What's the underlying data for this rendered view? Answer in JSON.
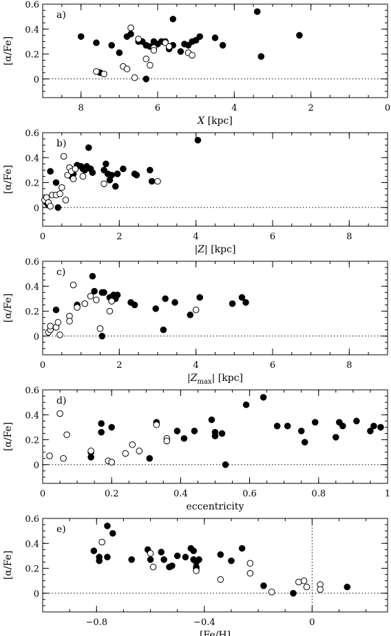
{
  "chart_data": [
    {
      "type": "scatter",
      "panel_label": "a)",
      "xlabel_italic": "X",
      "xlabel_unit": "[kpc]",
      "ylabel": "[α/Fe]",
      "xlim": [
        9,
        0
      ],
      "ylim": [
        -0.15,
        0.6
      ],
      "xticks": [
        8,
        6,
        4,
        2,
        0
      ],
      "xtick_labels": [
        "8",
        "6",
        "4",
        "2",
        "0"
      ],
      "yticks": [
        0,
        0.2,
        0.4,
        0.6
      ],
      "ytick_labels": [
        "0",
        "0.2",
        "0.4",
        "0.6"
      ],
      "hline": 0,
      "series": [
        {
          "marker": "filled",
          "x": [
            8.0,
            7.5,
            7.6,
            7.2,
            7.0,
            6.8,
            6.7,
            6.5,
            6.4,
            6.3,
            6.2,
            6.1,
            6.0,
            5.9,
            5.8,
            5.7,
            5.7,
            5.6,
            5.6,
            5.4,
            5.3,
            5.2,
            5.1,
            5.0,
            4.9,
            4.5,
            4.3,
            3.4,
            3.3,
            2.3,
            6.3
          ],
          "y": [
            0.34,
            0.05,
            0.29,
            0.27,
            0.21,
            0.34,
            0.36,
            0.3,
            0.3,
            0.27,
            0.26,
            0.3,
            0.28,
            0.3,
            0.3,
            0.26,
            0.24,
            0.27,
            0.48,
            0.22,
            0.28,
            0.27,
            0.3,
            0.31,
            0.34,
            0.33,
            0.27,
            0.54,
            0.18,
            0.35,
            0.0
          ]
        },
        {
          "marker": "open",
          "x": [
            7.6,
            7.4,
            6.9,
            6.8,
            6.7,
            6.6,
            6.5,
            6.3,
            6.2,
            6.1,
            6.1,
            5.8,
            5.7,
            5.2,
            5.1
          ],
          "y": [
            0.06,
            0.04,
            0.1,
            0.08,
            0.41,
            0.01,
            0.32,
            0.16,
            0.11,
            0.25,
            0.23,
            0.29,
            0.26,
            0.21,
            0.19
          ]
        }
      ]
    },
    {
      "type": "scatter",
      "panel_label": "b)",
      "xlabel_italic": "|Z|",
      "xlabel_unit": "[kpc]",
      "ylabel": "[α/Fe]",
      "xlim": [
        0,
        9
      ],
      "ylim": [
        -0.15,
        0.6
      ],
      "xticks": [
        0,
        2,
        4,
        6,
        8
      ],
      "xtick_labels": [
        "0",
        "2",
        "4",
        "6",
        "8"
      ],
      "yticks": [
        0,
        0.2,
        0.4,
        0.6
      ],
      "ytick_labels": [
        "0",
        "0.2",
        "0.4",
        "0.6"
      ],
      "hline": 0,
      "series": [
        {
          "marker": "filled",
          "x": [
            0.1,
            0.15,
            0.2,
            0.35,
            0.4,
            0.75,
            0.8,
            0.9,
            1.0,
            1.05,
            1.1,
            1.15,
            1.2,
            1.25,
            1.3,
            1.6,
            1.65,
            1.7,
            1.75,
            1.8,
            1.9,
            1.95,
            2.1,
            2.4,
            2.45,
            2.8,
            2.85,
            4.05
          ],
          "y": [
            0.04,
            0.02,
            0.29,
            0.2,
            0.0,
            0.25,
            0.27,
            0.34,
            0.33,
            0.31,
            0.3,
            0.33,
            0.48,
            0.31,
            0.28,
            0.3,
            0.35,
            0.27,
            0.22,
            0.26,
            0.17,
            0.27,
            0.31,
            0.27,
            0.26,
            0.3,
            0.21,
            0.54
          ]
        },
        {
          "marker": "open",
          "x": [
            0.05,
            0.1,
            0.15,
            0.2,
            0.25,
            0.35,
            0.45,
            0.5,
            0.55,
            0.6,
            0.65,
            0.7,
            0.75,
            0.8,
            0.85,
            1.05,
            1.6,
            3.0
          ],
          "y": [
            0.06,
            0.08,
            0.04,
            0.01,
            0.1,
            0.1,
            0.11,
            0.16,
            0.41,
            0.06,
            0.26,
            0.32,
            0.29,
            0.23,
            0.31,
            0.25,
            0.19,
            0.21
          ]
        }
      ]
    },
    {
      "type": "scatter",
      "panel_label": "c)",
      "xlabel_italic": "|Z",
      "xlabel_sub": "max",
      "xlabel_italic2": "|",
      "xlabel_unit": "[kpc]",
      "ylabel": "[α/Fe]",
      "xlim": [
        0,
        9
      ],
      "ylim": [
        -0.15,
        0.6
      ],
      "xticks": [
        0,
        2,
        4,
        6,
        8
      ],
      "xtick_labels": [
        "0",
        "2",
        "4",
        "6",
        "8"
      ],
      "yticks": [
        0,
        0.2,
        0.4,
        0.6
      ],
      "ytick_labels": [
        "0",
        "0.2",
        "0.4",
        "0.6"
      ],
      "hline": 0,
      "series": [
        {
          "marker": "filled",
          "x": [
            0.35,
            0.9,
            1.3,
            1.35,
            1.55,
            1.6,
            1.75,
            1.8,
            1.85,
            1.9,
            1.95,
            2.3,
            2.4,
            2.95,
            3.15,
            3.2,
            3.45,
            3.85,
            4.1,
            4.95,
            5.2,
            5.3,
            1.55
          ],
          "y": [
            0.21,
            0.25,
            0.48,
            0.36,
            0.35,
            0.35,
            0.31,
            0.28,
            0.33,
            0.3,
            0.33,
            0.27,
            0.25,
            0.22,
            0.05,
            0.3,
            0.27,
            0.17,
            0.31,
            0.26,
            0.31,
            0.27,
            0.0
          ]
        },
        {
          "marker": "open",
          "x": [
            0.15,
            0.2,
            0.2,
            0.35,
            0.4,
            0.45,
            0.7,
            0.7,
            0.8,
            0.9,
            1.1,
            1.25,
            1.4,
            1.5,
            1.75,
            1.8,
            4.0
          ],
          "y": [
            0.03,
            0.05,
            0.08,
            0.07,
            0.11,
            0.01,
            0.16,
            0.12,
            0.41,
            0.23,
            0.26,
            0.32,
            0.29,
            0.06,
            0.2,
            0.28,
            0.21
          ]
        }
      ]
    },
    {
      "type": "scatter",
      "panel_label": "d)",
      "xlabel": "eccentricity",
      "ylabel": "[α/Fe]",
      "xlim": [
        0,
        1
      ],
      "ylim": [
        -0.15,
        0.6
      ],
      "xticks": [
        0,
        0.2,
        0.4,
        0.6,
        0.8,
        1
      ],
      "xtick_labels": [
        "0",
        "0.2",
        "0.4",
        "0.6",
        "0.8",
        "1"
      ],
      "yticks": [
        0,
        0.2,
        0.4,
        0.6
      ],
      "ytick_labels": [
        "0",
        "0.2",
        "0.4",
        "0.6"
      ],
      "hline": 0,
      "series": [
        {
          "marker": "filled",
          "x": [
            0.14,
            0.14,
            0.17,
            0.17,
            0.2,
            0.31,
            0.33,
            0.39,
            0.41,
            0.44,
            0.49,
            0.5,
            0.5,
            0.52,
            0.53,
            0.59,
            0.64,
            0.68,
            0.71,
            0.75,
            0.76,
            0.79,
            0.85,
            0.86,
            0.87,
            0.91,
            0.95,
            0.96,
            0.98
          ],
          "y": [
            0.1,
            0.06,
            0.33,
            0.26,
            0.3,
            0.05,
            0.34,
            0.27,
            0.21,
            0.27,
            0.36,
            0.26,
            0.23,
            0.25,
            0.0,
            0.48,
            0.54,
            0.31,
            0.31,
            0.27,
            0.18,
            0.34,
            0.22,
            0.34,
            0.31,
            0.35,
            0.27,
            0.31,
            0.3
          ]
        },
        {
          "marker": "open",
          "x": [
            0.02,
            0.05,
            0.06,
            0.07,
            0.14,
            0.19,
            0.2,
            0.24,
            0.26,
            0.28,
            0.33,
            0.36,
            0.36
          ],
          "y": [
            0.07,
            0.41,
            0.05,
            0.24,
            0.11,
            0.03,
            0.02,
            0.09,
            0.16,
            0.11,
            0.32,
            0.21,
            0.19
          ]
        }
      ]
    },
    {
      "type": "scatter",
      "panel_label": "e)",
      "xlabel": "[Fe/H]",
      "ylabel": "[α/Fe]",
      "xlim": [
        -1.0,
        0.28
      ],
      "ylim": [
        -0.15,
        0.6
      ],
      "xticks": [
        -0.8,
        -0.4,
        0
      ],
      "xtick_labels": [
        "−0.8",
        "−0.4",
        "0"
      ],
      "yticks": [
        0,
        0.2,
        0.4,
        0.6
      ],
      "ytick_labels": [
        "0",
        "0.2",
        "0.4",
        "0.6"
      ],
      "hline": 0,
      "vline": 0,
      "series": [
        {
          "marker": "filled",
          "x": [
            -0.81,
            -0.79,
            -0.79,
            -0.76,
            -0.76,
            -0.74,
            -0.67,
            -0.61,
            -0.6,
            -0.56,
            -0.55,
            -0.53,
            -0.52,
            -0.5,
            -0.47,
            -0.45,
            -0.44,
            -0.44,
            -0.43,
            -0.43,
            -0.43,
            -0.42,
            -0.34,
            -0.3,
            -0.26,
            -0.18,
            -0.07,
            0.13
          ],
          "y": [
            0.34,
            0.29,
            0.26,
            0.54,
            0.29,
            0.48,
            0.27,
            0.35,
            0.27,
            0.33,
            0.27,
            0.21,
            0.22,
            0.3,
            0.29,
            0.36,
            0.34,
            0.27,
            0.25,
            0.21,
            0.2,
            0.27,
            0.31,
            0.26,
            0.36,
            0.06,
            0.0,
            0.05
          ]
        },
        {
          "marker": "open",
          "x": [
            -0.78,
            -0.6,
            -0.59,
            -0.43,
            -0.34,
            -0.23,
            -0.23,
            -0.15,
            -0.05,
            -0.03,
            -0.02,
            0.03,
            0.03
          ],
          "y": [
            0.41,
            0.32,
            0.21,
            0.18,
            0.11,
            0.24,
            0.16,
            0.01,
            0.09,
            0.1,
            0.05,
            0.07,
            0.03
          ]
        }
      ]
    }
  ]
}
